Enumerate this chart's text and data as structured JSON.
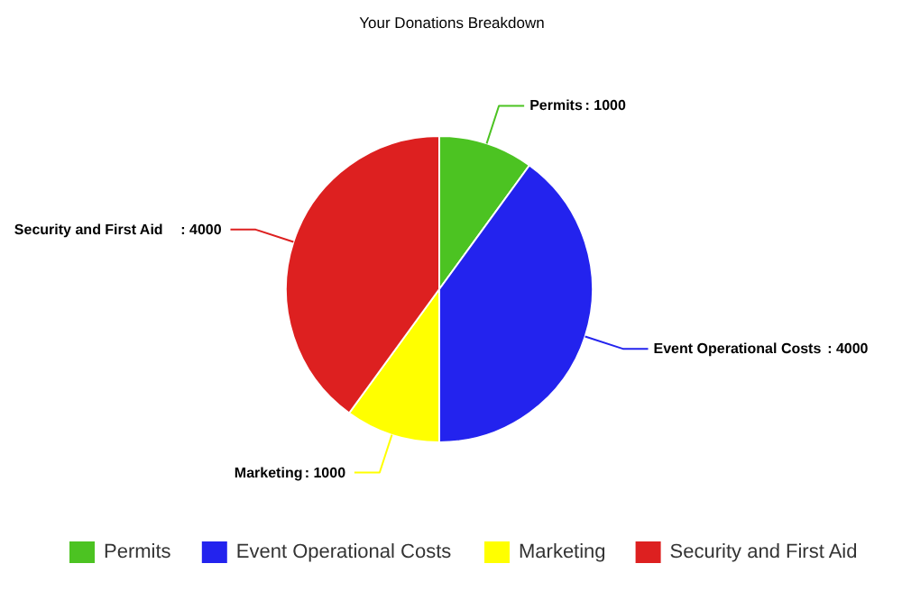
{
  "chart_data": {
    "type": "pie",
    "title": "Your Donations Breakdown",
    "categories": [
      "Permits",
      "Event Operational Costs",
      "Marketing",
      "Security and First Aid"
    ],
    "values": [
      1000,
      4000,
      1000,
      4000
    ],
    "colors": [
      "#4cc322",
      "#2323ee",
      "#ffff00",
      "#dd2020"
    ],
    "value_labels": [
      ": 1000",
      ": 4000",
      ": 1000",
      ": 4000"
    ],
    "legend": "bottom"
  }
}
